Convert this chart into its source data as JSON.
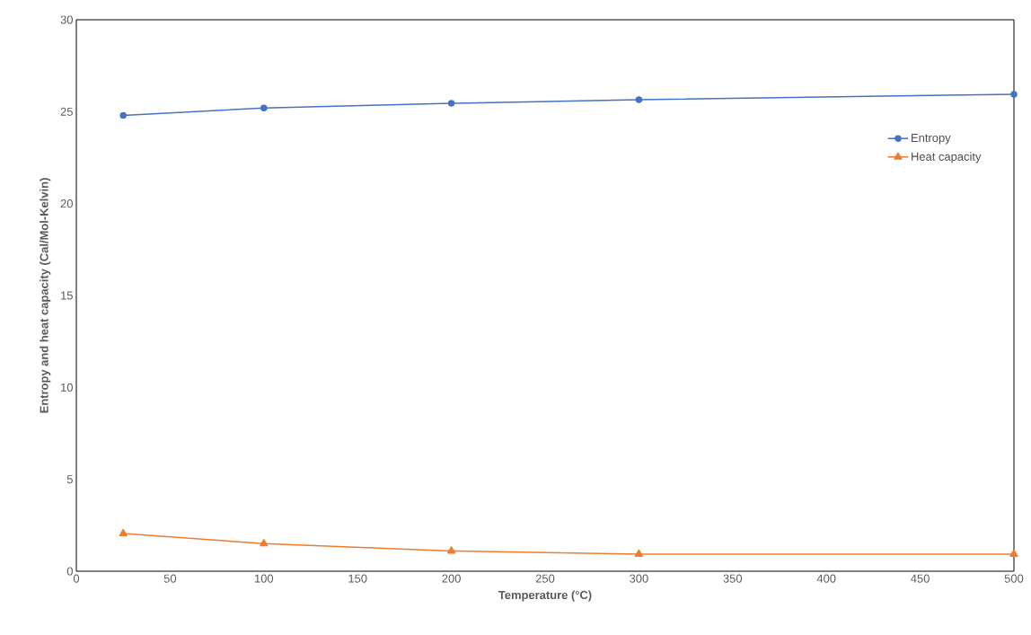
{
  "chart_data": {
    "type": "line",
    "xlabel": "Temperature (°C)",
    "ylabel": "Entropy and heat capacity (Cal/Mol-Kelvin)",
    "x": [
      25,
      100,
      200,
      300,
      500
    ],
    "series": [
      {
        "name": "Entropy",
        "color": "#4472c4",
        "marker": "circle",
        "values": [
          24.8,
          25.2,
          25.45,
          25.65,
          25.95
        ]
      },
      {
        "name": "Heat capacity",
        "color": "#ed7d31",
        "marker": "triangle",
        "values": [
          2.05,
          1.5,
          1.1,
          0.93,
          0.93
        ]
      }
    ],
    "xlim": [
      0,
      500
    ],
    "xticks": [
      0,
      50,
      100,
      150,
      200,
      250,
      300,
      350,
      400,
      450,
      500
    ],
    "ylim": [
      0,
      30
    ],
    "yticks": [
      0,
      5,
      10,
      15,
      20,
      25,
      30
    ],
    "legend": "top right",
    "grid": false,
    "line_style": "solid"
  }
}
